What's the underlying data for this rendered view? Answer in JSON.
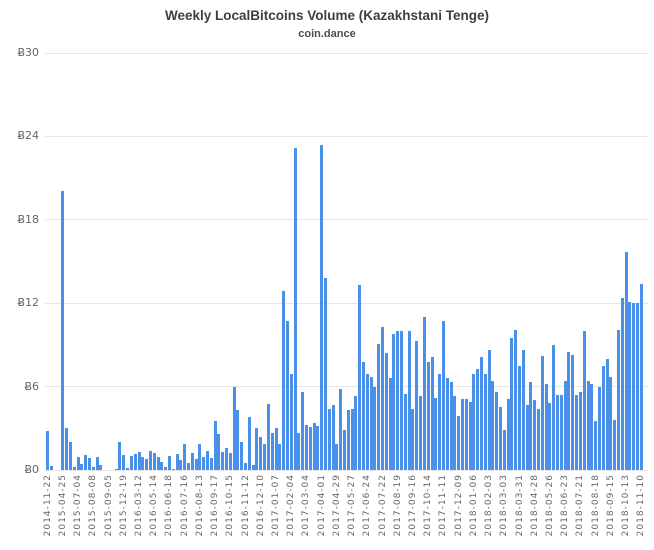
{
  "chart_data": {
    "type": "bar",
    "title": "Weekly LocalBitcoins Volume (Kazakhstani Tenge)",
    "subtitle": "coin.dance",
    "currency_prefix": "Ƀ",
    "ylabel": "",
    "xlabel": "",
    "ylim": [
      0,
      30
    ],
    "yticks": [
      0,
      6,
      12,
      18,
      24,
      30
    ],
    "ytick_labels": [
      "Ƀ0",
      "Ƀ6",
      "Ƀ12",
      "Ƀ18",
      "Ƀ24",
      "Ƀ30"
    ],
    "grid": true,
    "legend_position": "none",
    "bar_color": "#4a90e8",
    "x_tick_every": 4,
    "x_tick_labels": [
      "2014-11-22",
      "2015-04-25",
      "2015-07-04",
      "2015-08-08",
      "2015-09-05",
      "2015-12-19",
      "2016-03-12",
      "2016-05-14",
      "2016-06-18",
      "2016-07-16",
      "2016-08-13",
      "2016-09-17",
      "2016-10-15",
      "2016-11-12",
      "2016-12-10",
      "2017-01-07",
      "2017-02-04",
      "2017-03-04",
      "2017-04-01",
      "2017-04-29",
      "2017-05-27",
      "2017-06-24",
      "2017-07-22",
      "2017-08-19",
      "2017-09-16",
      "2017-10-14",
      "2017-11-11",
      "2017-12-09",
      "2018-01-06",
      "2018-02-03",
      "2018-03-03",
      "2018-03-31",
      "2018-04-28",
      "2018-05-26",
      "2018-06-23",
      "2018-07-21",
      "2018-08-18",
      "2018-09-15",
      "2018-10-13",
      "2018-11-10"
    ],
    "values": [
      2.8,
      0.3,
      0,
      0,
      20.1,
      3.0,
      2.0,
      0.25,
      0.9,
      0.45,
      1.1,
      0.85,
      0.2,
      0.9,
      0.35,
      0,
      0,
      0,
      0.1,
      2.0,
      1.1,
      0.15,
      1.0,
      1.15,
      1.3,
      0.9,
      0.8,
      1.35,
      1.25,
      0.95,
      0.6,
      0.25,
      1.0,
      0.1,
      1.15,
      0.7,
      1.9,
      0.5,
      1.2,
      0.8,
      1.85,
      0.95,
      1.4,
      0.85,
      3.5,
      2.6,
      1.3,
      1.6,
      1.2,
      6.0,
      4.3,
      2.0,
      0.5,
      3.8,
      0.35,
      3.05,
      2.4,
      1.85,
      4.75,
      2.65,
      3.0,
      1.85,
      12.9,
      10.7,
      6.9,
      23.2,
      2.65,
      5.6,
      3.25,
      3.1,
      3.4,
      3.2,
      23.4,
      13.8,
      4.4,
      4.7,
      1.9,
      5.8,
      2.9,
      4.3,
      4.4,
      5.3,
      13.3,
      7.8,
      6.9,
      6.7,
      6.0,
      9.1,
      10.3,
      8.4,
      6.6,
      9.8,
      10.0,
      10.0,
      5.5,
      10.0,
      4.4,
      9.3,
      5.3,
      11.0,
      7.8,
      8.1,
      5.2,
      6.9,
      10.7,
      6.6,
      6.3,
      5.3,
      3.9,
      5.1,
      5.1,
      4.9,
      6.9,
      7.3,
      8.1,
      6.9,
      8.6,
      6.4,
      5.6,
      4.5,
      2.9,
      5.1,
      9.5,
      10.1,
      7.5,
      8.6,
      4.7,
      6.3,
      5.0,
      4.4,
      8.2,
      6.2,
      4.8,
      9.0,
      5.4,
      5.4,
      6.4,
      8.5,
      8.3,
      5.4,
      5.6,
      10.0,
      6.4,
      6.2,
      3.5,
      6.0,
      7.5,
      8.0,
      6.7,
      3.6,
      10.1,
      12.4,
      15.7,
      12.1,
      12.0,
      12.0,
      13.4
    ]
  },
  "colors": {
    "bar": "#4a90e8",
    "grid": "#e6e6e6",
    "title_text": "#3f3f3f",
    "tick_text": "#666666",
    "background": "#ffffff"
  }
}
